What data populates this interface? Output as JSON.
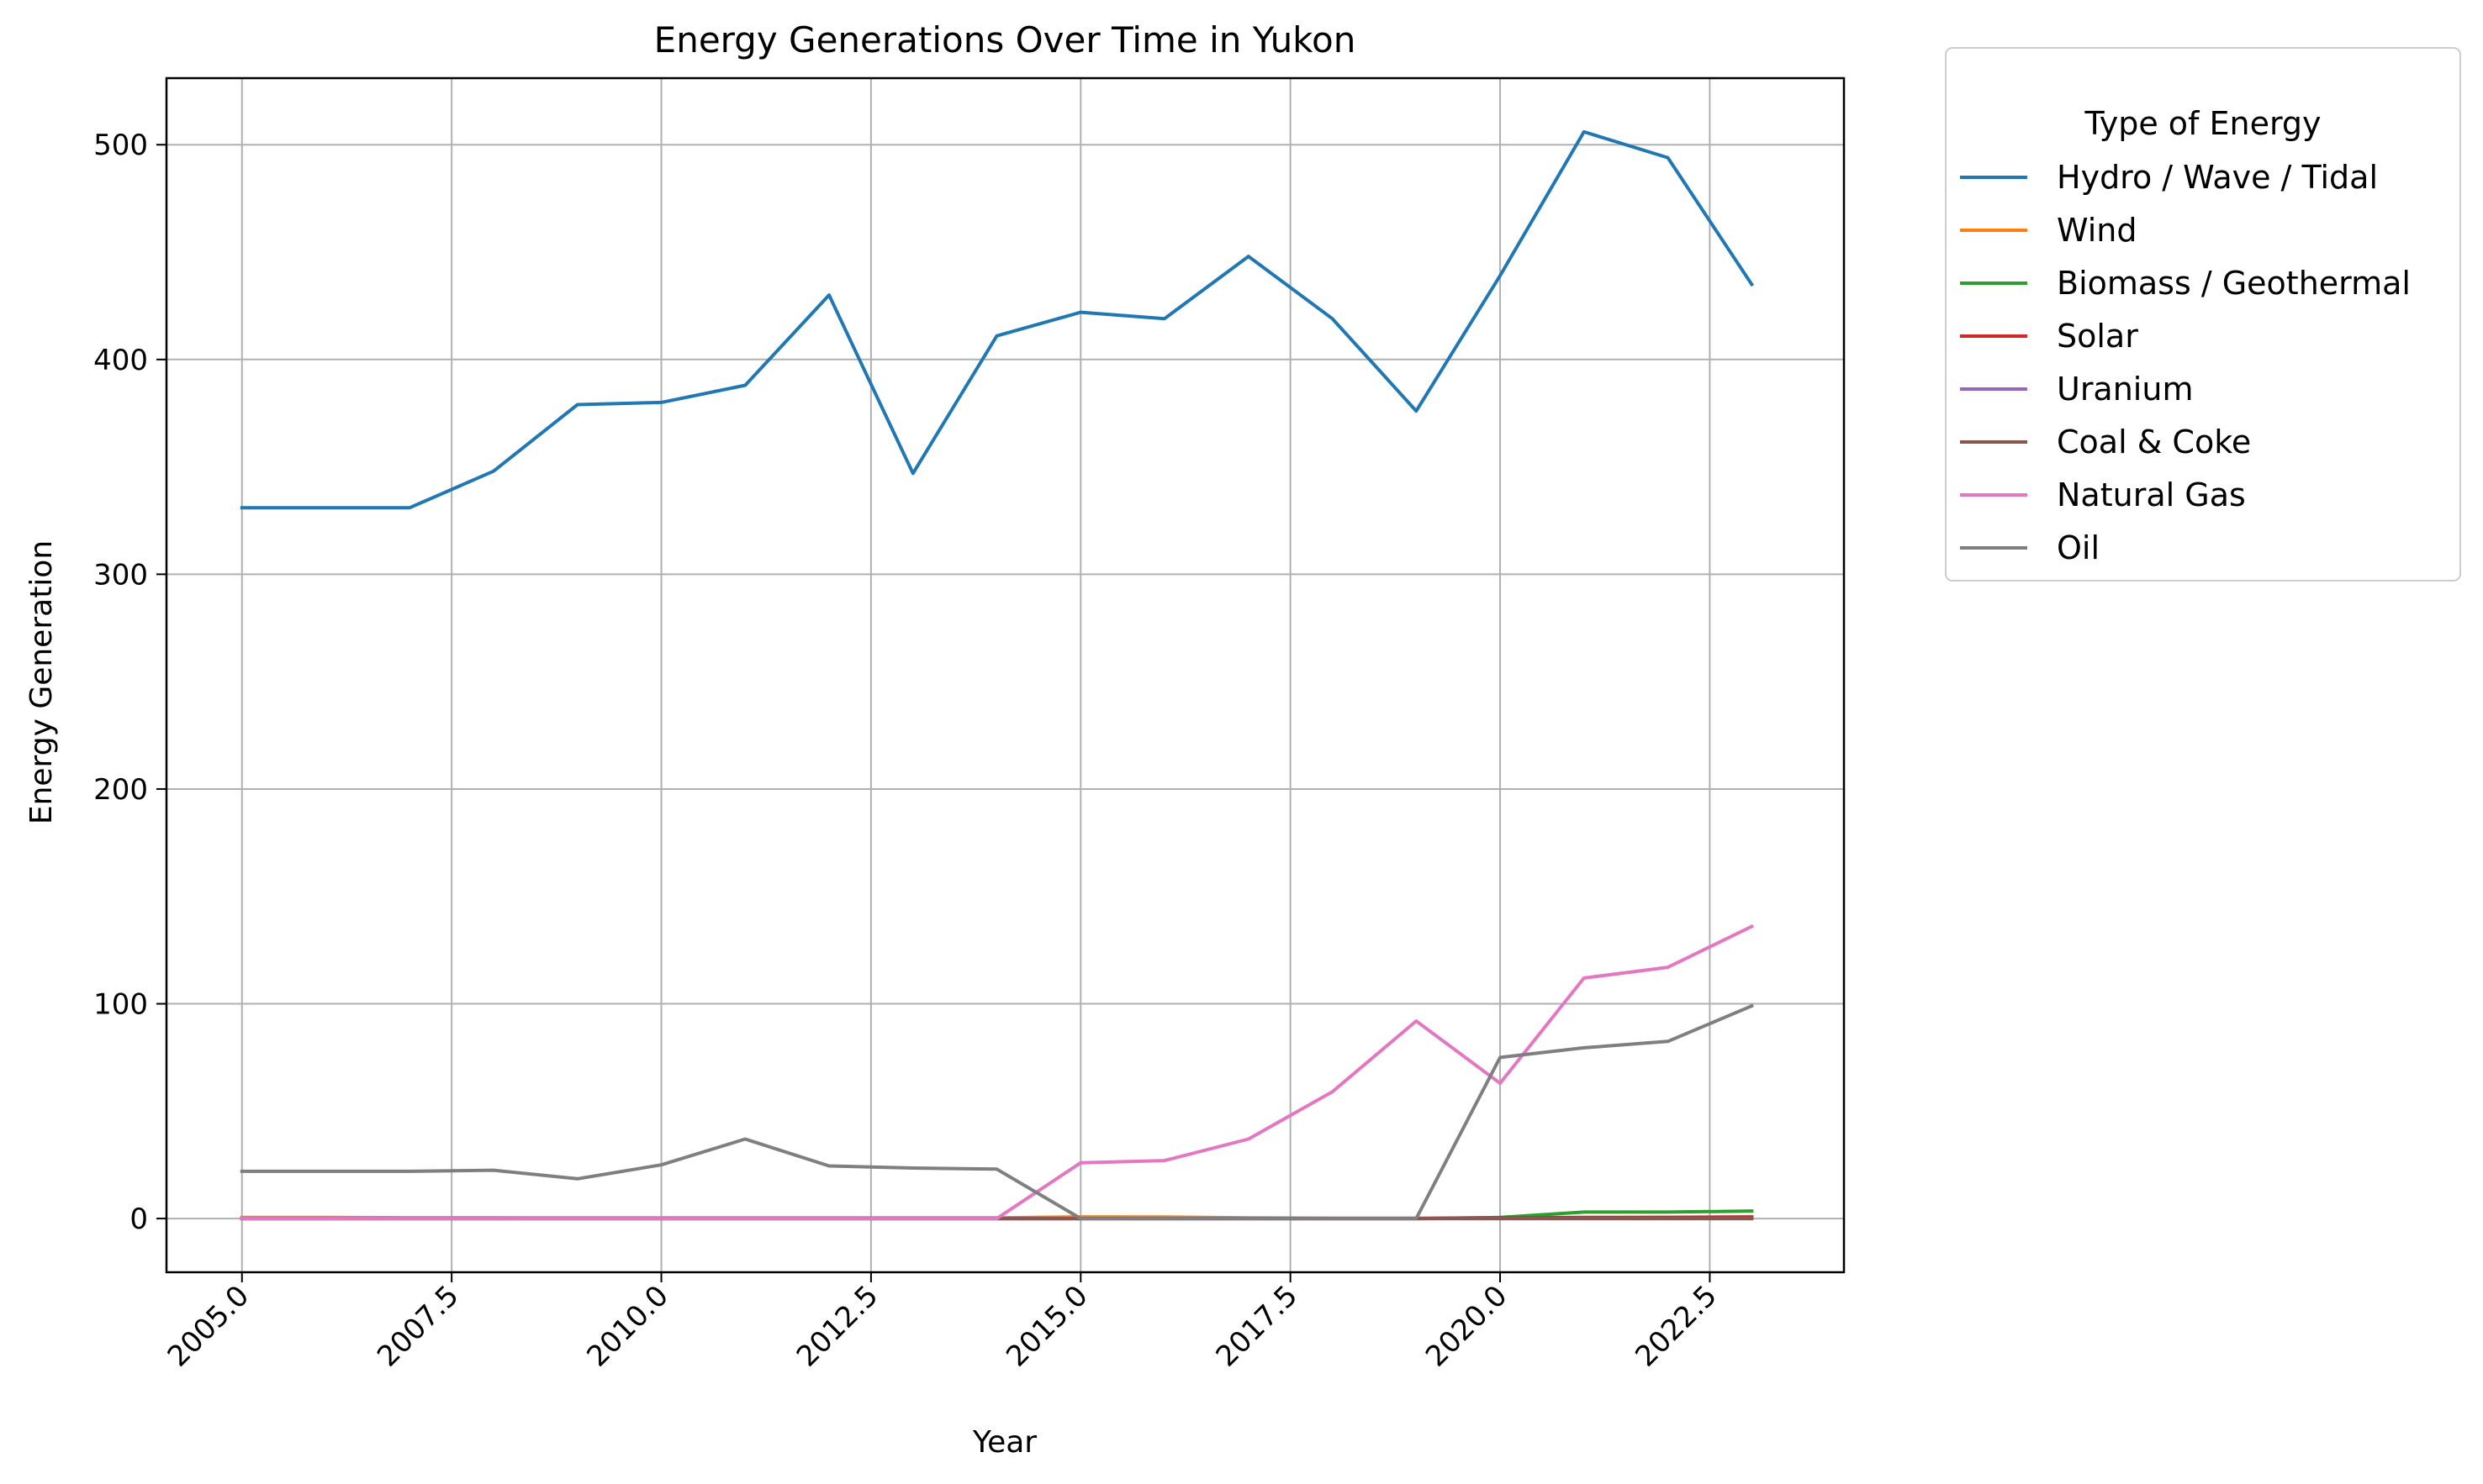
{
  "chart_data": {
    "type": "line",
    "title": "Energy Generations Over Time in Yukon",
    "xlabel": "Year",
    "ylabel": "Energy Generation",
    "xlim": [
      2004.1,
      2024.1
    ],
    "ylim": [
      -25,
      531
    ],
    "xticks": [
      2005.0,
      2007.5,
      2010.0,
      2012.5,
      2015.0,
      2017.5,
      2020.0,
      2022.5
    ],
    "xtick_labels": [
      "2005.0",
      "2007.5",
      "2010.0",
      "2012.5",
      "2015.0",
      "2017.5",
      "2020.0",
      "2022.5"
    ],
    "yticks": [
      0,
      100,
      200,
      300,
      400,
      500
    ],
    "ytick_labels": [
      "0",
      "100",
      "200",
      "300",
      "400",
      "500"
    ],
    "grid": true,
    "legend": {
      "title": "Type of Energy",
      "placement": "outside-right-top"
    },
    "x": [
      2005,
      2006,
      2007,
      2008,
      2009,
      2010,
      2011,
      2012,
      2013,
      2014,
      2015,
      2016,
      2017,
      2018,
      2019,
      2020,
      2021,
      2022,
      2023
    ],
    "series": [
      {
        "name": "Hydro / Wave / Tidal",
        "color": "#1f77b4",
        "values": [
          331,
          331,
          331,
          348,
          379,
          380,
          388,
          430,
          347,
          411,
          422,
          419,
          448,
          419,
          376,
          439,
          506,
          494,
          435
        ]
      },
      {
        "name": "Wind",
        "color": "#ff7f0e",
        "values": [
          0.5,
          0.5,
          0.4,
          0.4,
          0.3,
          0.3,
          0.3,
          0.3,
          0.3,
          0.3,
          0.8,
          0.7,
          0.3,
          0.2,
          0.2,
          0.4,
          0.3,
          0.3,
          0.3
        ]
      },
      {
        "name": "Biomass / Geothermal",
        "color": "#2ca02c",
        "values": [
          0,
          0,
          0,
          0,
          0,
          0,
          0,
          0,
          0,
          0,
          0,
          0,
          0,
          0,
          0,
          0.5,
          3,
          3,
          3.5
        ]
      },
      {
        "name": "Solar",
        "color": "#d62728",
        "values": [
          0,
          0,
          0,
          0,
          0,
          0,
          0,
          0,
          0,
          0,
          0,
          0,
          0,
          0,
          0,
          0.3,
          0.5,
          0.6,
          0.8
        ]
      },
      {
        "name": "Uranium",
        "color": "#9467bd",
        "values": [
          0,
          0,
          0,
          0,
          0,
          0,
          0,
          0,
          0,
          0,
          0,
          0,
          0,
          0,
          0,
          0,
          0,
          0,
          0
        ]
      },
      {
        "name": "Coal & Coke",
        "color": "#8c564b",
        "values": [
          0,
          0,
          0,
          0,
          0,
          0,
          0,
          0,
          0,
          0,
          0,
          0,
          0,
          0,
          0,
          0,
          0,
          0,
          0
        ]
      },
      {
        "name": "Natural Gas",
        "color": "#e377c2",
        "values": [
          0,
          0,
          0,
          0,
          0,
          0,
          0,
          0,
          0,
          0,
          26,
          27,
          37,
          59,
          92,
          63,
          112,
          117,
          136
        ]
      },
      {
        "name": "Oil",
        "color": "#7f7f7f",
        "values": [
          22,
          22,
          22,
          22.5,
          18.5,
          25,
          37,
          24.5,
          23.5,
          23,
          0,
          0,
          0,
          0,
          0,
          75,
          79.5,
          82.5,
          99
        ]
      }
    ]
  }
}
